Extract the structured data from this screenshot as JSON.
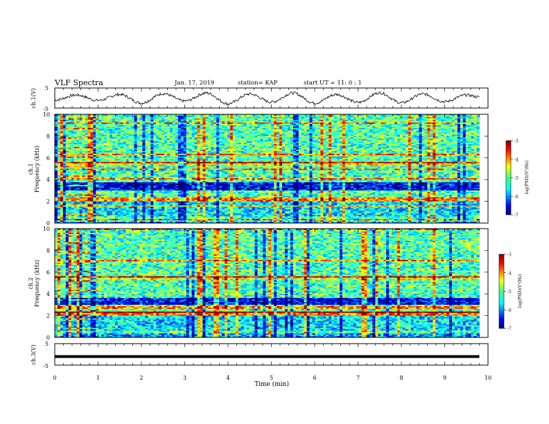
{
  "header": {
    "title": "VLF Spectra",
    "date": "Jan. 17, 2019",
    "station": "station= KAP",
    "start": "start UT =  11: 0  : 1"
  },
  "colors": {
    "axis": "#000000",
    "trace": "#000000",
    "background": "#ffffff"
  },
  "chart_data": [
    {
      "type": "line",
      "id": "ch1_waveform",
      "ylabel": "ch.1(V)",
      "ylim": [
        -5,
        5
      ],
      "yticks": [
        "5",
        "-5"
      ],
      "xlim": [
        0,
        10
      ],
      "description_of_series": "noisy quasi-periodic oscillation",
      "x": [
        0,
        0.5,
        1.0,
        1.5,
        2.0,
        2.5,
        3.0,
        3.5,
        4.0,
        4.5,
        5.0,
        5.5,
        6.0,
        6.5,
        7.0,
        7.5,
        8.0,
        8.5,
        9.0,
        9.5,
        9.8
      ],
      "y": [
        -1,
        1.5,
        -1.2,
        1.8,
        -2.5,
        2.2,
        -1.5,
        2.5,
        -2.8,
        2.0,
        -2.0,
        2.5,
        -2.5,
        1.8,
        -2.2,
        2.6,
        -2.4,
        2.0,
        -1.8,
        1.5,
        0.5
      ]
    },
    {
      "type": "heatmap",
      "id": "ch1_spectrogram",
      "ylabel": "ch.1\nFrequency (kHz)",
      "ylim": [
        0,
        10
      ],
      "yticks": [
        "0",
        "2",
        "4",
        "6",
        "8",
        "10"
      ],
      "xlim": [
        0,
        9.8
      ],
      "colorbar": {
        "label": "log(PSD)(V²/Hz)",
        "range": [
          -7,
          -3
        ],
        "ticks": [
          "-3",
          "-4",
          "-5",
          "-6",
          "-7"
        ]
      }
    },
    {
      "type": "heatmap",
      "id": "ch2_spectrogram",
      "ylabel": "ch.2\nFrequency (kHz)",
      "ylim": [
        0,
        10
      ],
      "yticks": [
        "0",
        "2",
        "4",
        "6",
        "8",
        "10"
      ],
      "xlim": [
        0,
        9.8
      ],
      "colorbar": {
        "label": "log(PSD)(V²/Hz)",
        "range": [
          -7,
          -3
        ],
        "ticks": [
          "-3",
          "-4",
          "-5",
          "-6",
          "-7"
        ]
      }
    },
    {
      "type": "line",
      "id": "ch3_waveform",
      "ylabel": "ch.3(V)",
      "ylim": [
        -5,
        5
      ],
      "yticks": [
        "5",
        "-5"
      ],
      "xlim": [
        0,
        10
      ],
      "x": [
        0,
        9.8
      ],
      "y": [
        -1,
        -1
      ]
    }
  ],
  "xaxis": {
    "label": "Time  (min)",
    "ticks": [
      "0",
      "1",
      "2",
      "3",
      "4",
      "5",
      "6",
      "7",
      "8",
      "9",
      "10"
    ],
    "range": [
      0,
      10
    ]
  },
  "colorbar_labels": {
    "ch1": "log(PSD)(V²/Hz)",
    "ch2": "log(PSD)(V²/Hz)"
  }
}
